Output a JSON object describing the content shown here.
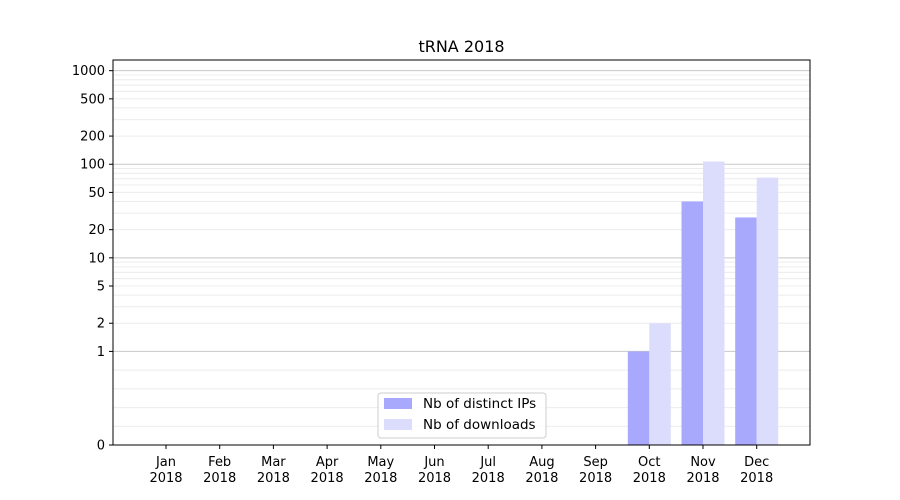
{
  "chart_data": {
    "type": "bar",
    "title": "tRNA 2018",
    "categories": [
      [
        "Jan",
        "2018"
      ],
      [
        "Feb",
        "2018"
      ],
      [
        "Mar",
        "2018"
      ],
      [
        "Apr",
        "2018"
      ],
      [
        "May",
        "2018"
      ],
      [
        "Jun",
        "2018"
      ],
      [
        "Jul",
        "2018"
      ],
      [
        "Aug",
        "2018"
      ],
      [
        "Sep",
        "2018"
      ],
      [
        "Oct",
        "2018"
      ],
      [
        "Nov",
        "2018"
      ],
      [
        "Dec",
        "2018"
      ]
    ],
    "series": [
      {
        "name": "Nb of distinct IPs",
        "color": "#a8a8fc",
        "values": [
          0,
          0,
          0,
          0,
          0,
          0,
          0,
          0,
          0,
          1,
          40,
          27
        ]
      },
      {
        "name": "Nb of downloads",
        "color": "#dcdcfc",
        "values": [
          0,
          0,
          0,
          0,
          0,
          0,
          0,
          0,
          0,
          2,
          107,
          72
        ]
      }
    ],
    "yscale": "symlog",
    "ylim": [
      0,
      1300
    ],
    "yticks": [
      0,
      1,
      2,
      5,
      10,
      20,
      50,
      100,
      200,
      500,
      1000
    ],
    "grid": true,
    "legend_position": "lower-center"
  }
}
